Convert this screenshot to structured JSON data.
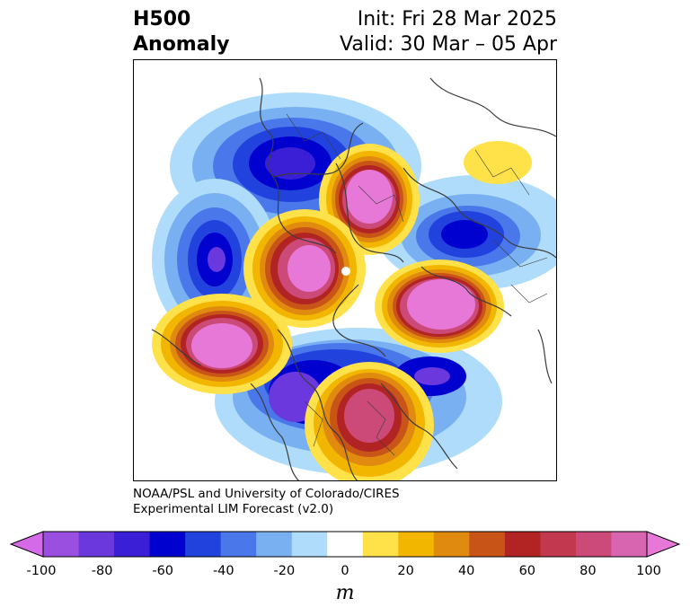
{
  "header": {
    "title_line1": "H500",
    "title_line2": "Anomaly",
    "init": "Init: Fri 28 Mar 2025",
    "valid": "Valid: 30 Mar – 05 Apr"
  },
  "credit": {
    "line1": "NOAA/PSL and University of Colorado/CIRES",
    "line2": "Experimental LIM Forecast (v2.0)"
  },
  "colorbar": {
    "unit": "m",
    "ticks": [
      "-100",
      "-80",
      "-60",
      "-40",
      "-20",
      "0",
      "20",
      "40",
      "60",
      "80",
      "100"
    ],
    "colors": [
      "#d46ae8",
      "#9b4fe0",
      "#6a38dc",
      "#3a1fd6",
      "#0000cf",
      "#2242de",
      "#4a78ea",
      "#78b0f2",
      "#aedcfa",
      "#ffffff",
      "#ffe14a",
      "#f2b600",
      "#e08a10",
      "#c85418",
      "#b22424",
      "#c2384e",
      "#cc4a78",
      "#d865b0",
      "#e878d8"
    ]
  }
}
